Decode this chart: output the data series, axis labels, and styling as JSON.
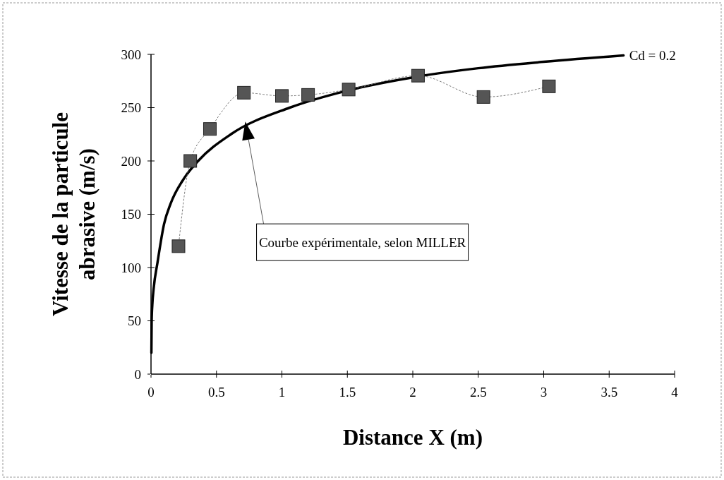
{
  "chart_data": {
    "type": "line",
    "xlabel": "Distance X (m)",
    "ylabel": "Vitesse de la particule abrasive (m/s)",
    "xlim": [
      0,
      4
    ],
    "xticks": [
      0,
      0.5,
      1,
      1.5,
      2,
      2.5,
      3,
      3.5,
      4
    ],
    "ylim": [
      0,
      300
    ],
    "yticks": [
      0,
      50,
      100,
      150,
      200,
      250,
      300
    ],
    "grid": false,
    "annotations": [
      "Courbe expérimentale, selon MILLER"
    ],
    "series": [
      {
        "name": "Cd = 0.2",
        "color": "#000000",
        "marker": "none",
        "line_style": "solid",
        "x": [
          0.003,
          0.005,
          0.01,
          0.02,
          0.05,
          0.1,
          0.15,
          0.26,
          0.36,
          0.61,
          1.06,
          1.5,
          2.03,
          2.5,
          3.0,
          3.61
        ],
        "values": [
          20,
          50,
          65,
          80,
          105,
          141,
          160,
          185,
          200,
          225,
          250,
          266,
          279,
          287,
          293,
          299
        ]
      },
      {
        "color": "#555555",
        "marker": "square",
        "line_style": "dotted",
        "x": [
          0.21,
          0.3,
          0.45,
          0.71,
          1.0,
          1.2,
          1.51,
          2.04,
          2.54,
          3.04
        ],
        "values": [
          120,
          200,
          230,
          264,
          261,
          262,
          267,
          280,
          260,
          270
        ]
      }
    ]
  }
}
